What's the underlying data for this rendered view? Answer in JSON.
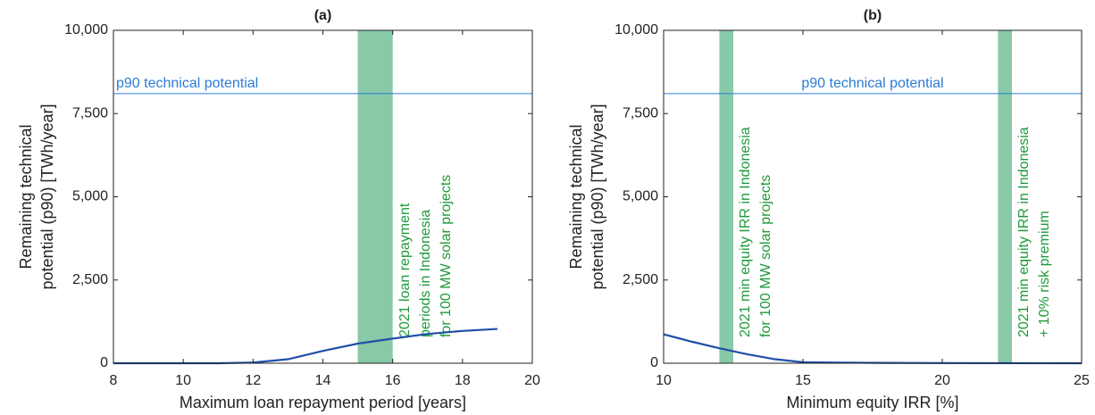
{
  "chart_data": [
    {
      "type": "line",
      "title": "(a)",
      "xlabel": "Maximum loan repayment period [years]",
      "ylabel": [
        "Remaining technical",
        "potential (p90) [TWh/year]"
      ],
      "x": [
        8,
        9,
        10,
        11,
        12,
        13,
        14,
        15,
        16,
        17,
        18,
        19
      ],
      "values": [
        0,
        0,
        0,
        0,
        20,
        120,
        370,
        590,
        740,
        880,
        970,
        1030
      ],
      "color": "#1f4fa8",
      "xlim": [
        8,
        20
      ],
      "xticks": [
        8,
        10,
        12,
        14,
        16,
        18,
        20
      ],
      "ylim": [
        0,
        10000
      ],
      "yticks": [
        0,
        {
          "value": 2500,
          "label": "2,500"
        },
        {
          "value": 5000,
          "label": "5,000"
        },
        {
          "value": 7500,
          "label": "7,500"
        },
        {
          "value": 10000,
          "label": "10,000"
        }
      ],
      "reference_line": {
        "y": 8100,
        "label": "p90 technical potential",
        "color": "#2b7bd6"
      },
      "bands": [
        {
          "x": [
            15,
            16
          ],
          "color": "#88c9a8",
          "label": [
            "2021 loan repayment",
            "periods in Indonesia",
            "for 100 MW solar projects"
          ],
          "label_color": "#1f9a3a"
        }
      ]
    },
    {
      "type": "line",
      "title": "(b)",
      "xlabel": "Minimum equity IRR [%]",
      "ylabel": [
        "Remaining technical",
        "potential (p90) [TWh/year]"
      ],
      "x": [
        10,
        11,
        12,
        13,
        14,
        15,
        16,
        17,
        18,
        20,
        22,
        25
      ],
      "values": [
        870,
        650,
        450,
        270,
        120,
        30,
        20,
        15,
        10,
        5,
        2,
        0
      ],
      "color": "#1f4fa8",
      "xlim": [
        10,
        25
      ],
      "xticks": [
        10,
        15,
        20,
        25
      ],
      "ylim": [
        0,
        10000
      ],
      "yticks": [
        0,
        {
          "value": 2500,
          "label": "2,500"
        },
        {
          "value": 5000,
          "label": "5,000"
        },
        {
          "value": 7500,
          "label": "7,500"
        },
        {
          "value": 10000,
          "label": "10,000"
        }
      ],
      "reference_line": {
        "y": 8100,
        "label": "p90 technical potential",
        "color": "#2b7bd6"
      },
      "bands": [
        {
          "x": [
            12,
            12.5
          ],
          "color": "#88c9a8",
          "label": [
            "2021 min equity IRR in Indonesia",
            "for 100 MW solar projects"
          ],
          "label_color": "#1f9a3a"
        },
        {
          "x": [
            22,
            22.5
          ],
          "color": "#88c9a8",
          "label": [
            "2021 min equity IRR in Indonesia",
            "+ 10% risk premium"
          ],
          "label_color": "#1f9a3a"
        }
      ]
    }
  ]
}
